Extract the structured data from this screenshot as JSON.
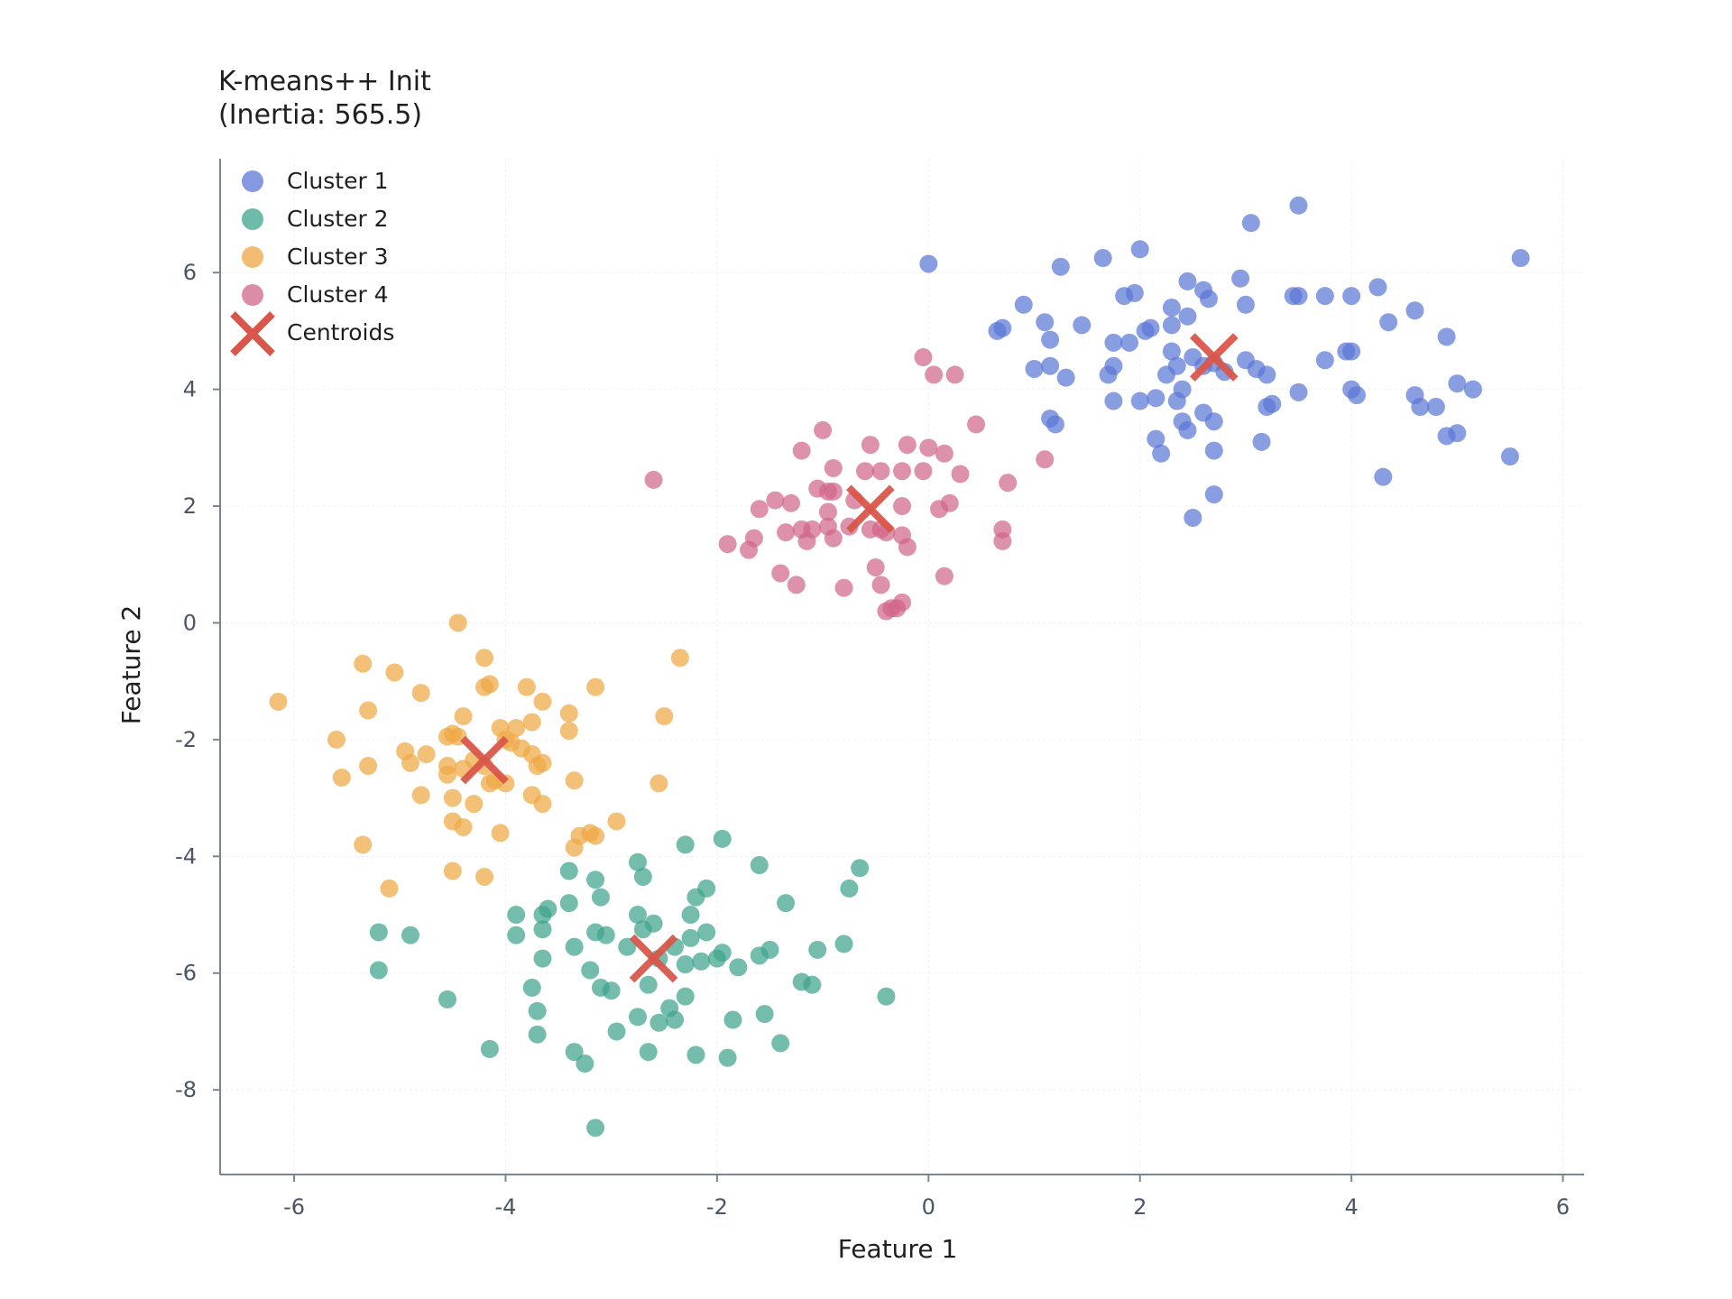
{
  "chart_data": {
    "type": "scatter",
    "title_line1": "K-means++ Init",
    "title_line2": "(Inertia: 565.5)",
    "xlabel": "Feature 1",
    "ylabel": "Feature 2",
    "xlim": [
      -6.7,
      6.2
    ],
    "ylim": [
      -9.45,
      7.95
    ],
    "xticks": [
      -6,
      -4,
      -2,
      0,
      2,
      4,
      6
    ],
    "yticks": [
      -8,
      -6,
      -4,
      -2,
      0,
      2,
      4,
      6
    ],
    "xtick_labels": [
      "-6",
      "-4",
      "-2",
      "0",
      "2",
      "4",
      "6"
    ],
    "ytick_labels": [
      "-8",
      "-6",
      "-4",
      "-2",
      "0",
      "2",
      "4",
      "6"
    ],
    "grid": true,
    "legend_position": "top-left",
    "series": [
      {
        "name": "Cluster 1",
        "color": "#5b77d6",
        "points": [
          [
            0.0,
            6.15
          ],
          [
            1.25,
            6.1
          ],
          [
            1.65,
            6.25
          ],
          [
            2.0,
            6.4
          ],
          [
            3.05,
            6.85
          ],
          [
            3.5,
            7.15
          ],
          [
            5.6,
            6.25
          ],
          [
            0.9,
            5.45
          ],
          [
            1.85,
            5.6
          ],
          [
            1.95,
            5.65
          ],
          [
            2.3,
            5.4
          ],
          [
            2.45,
            5.85
          ],
          [
            2.6,
            5.7
          ],
          [
            2.65,
            5.55
          ],
          [
            2.95,
            5.9
          ],
          [
            3.0,
            5.45
          ],
          [
            3.45,
            5.6
          ],
          [
            3.5,
            5.6
          ],
          [
            3.75,
            5.6
          ],
          [
            4.0,
            5.6
          ],
          [
            4.25,
            5.75
          ],
          [
            4.6,
            5.35
          ],
          [
            0.65,
            5.0
          ],
          [
            0.7,
            5.05
          ],
          [
            1.1,
            5.15
          ],
          [
            1.15,
            4.85
          ],
          [
            1.45,
            5.1
          ],
          [
            2.05,
            5.0
          ],
          [
            2.1,
            5.05
          ],
          [
            2.3,
            5.1
          ],
          [
            2.45,
            5.25
          ],
          [
            1.75,
            4.8
          ],
          [
            1.9,
            4.8
          ],
          [
            2.3,
            4.65
          ],
          [
            2.5,
            4.55
          ],
          [
            2.35,
            4.4
          ],
          [
            2.6,
            4.4
          ],
          [
            2.7,
            4.45
          ],
          [
            2.8,
            4.3
          ],
          [
            3.0,
            4.5
          ],
          [
            3.1,
            4.35
          ],
          [
            3.2,
            4.25
          ],
          [
            1.0,
            4.35
          ],
          [
            1.15,
            4.4
          ],
          [
            1.3,
            4.2
          ],
          [
            1.7,
            4.25
          ],
          [
            1.75,
            4.4
          ],
          [
            2.25,
            4.25
          ],
          [
            2.4,
            4.0
          ],
          [
            3.2,
            3.7
          ],
          [
            3.25,
            3.75
          ],
          [
            3.5,
            3.95
          ],
          [
            3.75,
            4.5
          ],
          [
            3.95,
            4.65
          ],
          [
            4.0,
            4.65
          ],
          [
            4.0,
            4.0
          ],
          [
            4.05,
            3.9
          ],
          [
            4.35,
            5.15
          ],
          [
            4.9,
            4.9
          ],
          [
            5.0,
            4.1
          ],
          [
            5.15,
            4.0
          ],
          [
            4.6,
            3.9
          ],
          [
            4.65,
            3.7
          ],
          [
            4.8,
            3.7
          ],
          [
            4.9,
            3.2
          ],
          [
            5.0,
            3.25
          ],
          [
            5.5,
            2.85
          ],
          [
            1.75,
            3.8
          ],
          [
            2.0,
            3.8
          ],
          [
            2.15,
            3.85
          ],
          [
            2.35,
            3.8
          ],
          [
            2.4,
            3.45
          ],
          [
            2.6,
            3.6
          ],
          [
            2.7,
            3.45
          ],
          [
            1.15,
            3.5
          ],
          [
            1.2,
            3.4
          ],
          [
            2.15,
            3.15
          ],
          [
            2.2,
            2.9
          ],
          [
            2.45,
            3.3
          ],
          [
            2.7,
            2.95
          ],
          [
            3.15,
            3.1
          ],
          [
            4.3,
            2.5
          ],
          [
            2.7,
            2.2
          ],
          [
            2.5,
            1.8
          ]
        ]
      },
      {
        "name": "Cluster 2",
        "color": "#3fa48c",
        "points": [
          [
            -1.95,
            -3.7
          ],
          [
            -2.3,
            -3.8
          ],
          [
            -0.65,
            -4.2
          ],
          [
            -1.6,
            -4.15
          ],
          [
            -2.75,
            -4.1
          ],
          [
            -2.7,
            -4.35
          ],
          [
            -3.4,
            -4.25
          ],
          [
            -3.15,
            -4.4
          ],
          [
            -2.1,
            -4.55
          ],
          [
            -2.2,
            -4.7
          ],
          [
            -0.75,
            -4.55
          ],
          [
            -1.35,
            -4.8
          ],
          [
            -3.1,
            -4.7
          ],
          [
            -3.4,
            -4.8
          ],
          [
            -3.6,
            -4.9
          ],
          [
            -3.65,
            -5.0
          ],
          [
            -3.9,
            -5.0
          ],
          [
            -2.75,
            -5.0
          ],
          [
            -2.6,
            -5.15
          ],
          [
            -2.25,
            -5.0
          ],
          [
            -2.1,
            -5.3
          ],
          [
            -2.7,
            -5.25
          ],
          [
            -3.05,
            -5.35
          ],
          [
            -3.15,
            -5.3
          ],
          [
            -3.65,
            -5.25
          ],
          [
            -3.9,
            -5.35
          ],
          [
            -5.2,
            -5.3
          ],
          [
            -4.9,
            -5.35
          ],
          [
            -2.85,
            -5.55
          ],
          [
            -2.4,
            -5.55
          ],
          [
            -2.25,
            -5.4
          ],
          [
            -1.95,
            -5.65
          ],
          [
            -1.6,
            -5.7
          ],
          [
            -1.5,
            -5.6
          ],
          [
            -1.05,
            -5.6
          ],
          [
            -0.8,
            -5.5
          ],
          [
            -3.35,
            -5.55
          ],
          [
            -3.65,
            -5.75
          ],
          [
            -2.55,
            -5.75
          ],
          [
            -2.3,
            -5.85
          ],
          [
            -2.15,
            -5.8
          ],
          [
            -2.0,
            -5.75
          ],
          [
            -1.8,
            -5.9
          ],
          [
            -3.2,
            -5.95
          ],
          [
            -3.1,
            -6.25
          ],
          [
            -3.0,
            -6.3
          ],
          [
            -2.65,
            -6.2
          ],
          [
            -2.3,
            -6.4
          ],
          [
            -1.2,
            -6.15
          ],
          [
            -1.1,
            -6.2
          ],
          [
            -0.4,
            -6.4
          ],
          [
            -5.2,
            -5.95
          ],
          [
            -4.55,
            -6.45
          ],
          [
            -3.75,
            -6.25
          ],
          [
            -3.7,
            -6.65
          ],
          [
            -2.75,
            -6.75
          ],
          [
            -2.55,
            -6.85
          ],
          [
            -2.45,
            -6.6
          ],
          [
            -2.4,
            -6.8
          ],
          [
            -1.85,
            -6.8
          ],
          [
            -1.55,
            -6.7
          ],
          [
            -2.95,
            -7.0
          ],
          [
            -3.7,
            -7.05
          ],
          [
            -1.4,
            -7.2
          ],
          [
            -4.15,
            -7.3
          ],
          [
            -3.35,
            -7.35
          ],
          [
            -3.25,
            -7.55
          ],
          [
            -2.65,
            -7.35
          ],
          [
            -2.2,
            -7.4
          ],
          [
            -1.9,
            -7.45
          ],
          [
            -3.15,
            -8.65
          ]
        ]
      },
      {
        "name": "Cluster 3",
        "color": "#eea744",
        "points": [
          [
            -4.45,
            0.0
          ],
          [
            -4.2,
            -0.6
          ],
          [
            -5.35,
            -0.7
          ],
          [
            -5.05,
            -0.85
          ],
          [
            -2.35,
            -0.6
          ],
          [
            -4.15,
            -1.05
          ],
          [
            -4.2,
            -1.1
          ],
          [
            -3.8,
            -1.1
          ],
          [
            -3.15,
            -1.1
          ],
          [
            -4.8,
            -1.2
          ],
          [
            -6.15,
            -1.35
          ],
          [
            -3.65,
            -1.35
          ],
          [
            -5.3,
            -1.5
          ],
          [
            -4.4,
            -1.6
          ],
          [
            -3.4,
            -1.55
          ],
          [
            -2.5,
            -1.6
          ],
          [
            -4.05,
            -1.8
          ],
          [
            -3.9,
            -1.8
          ],
          [
            -3.75,
            -1.7
          ],
          [
            -3.4,
            -1.85
          ],
          [
            -5.6,
            -2.0
          ],
          [
            -4.55,
            -1.95
          ],
          [
            -4.5,
            -1.9
          ],
          [
            -4.45,
            -1.95
          ],
          [
            -4.0,
            -2.0
          ],
          [
            -3.95,
            -2.05
          ],
          [
            -3.85,
            -2.15
          ],
          [
            -4.95,
            -2.2
          ],
          [
            -4.75,
            -2.25
          ],
          [
            -4.55,
            -2.45
          ],
          [
            -4.3,
            -2.35
          ],
          [
            -4.2,
            -2.45
          ],
          [
            -3.75,
            -2.25
          ],
          [
            -4.9,
            -2.4
          ],
          [
            -5.3,
            -2.45
          ],
          [
            -3.7,
            -2.45
          ],
          [
            -3.65,
            -2.4
          ],
          [
            -4.4,
            -2.5
          ],
          [
            -4.55,
            -2.6
          ],
          [
            -4.0,
            -2.75
          ],
          [
            -4.15,
            -2.75
          ],
          [
            -4.1,
            -2.7
          ],
          [
            -5.55,
            -2.65
          ],
          [
            -3.35,
            -2.7
          ],
          [
            -2.55,
            -2.75
          ],
          [
            -4.8,
            -2.95
          ],
          [
            -4.5,
            -3.0
          ],
          [
            -3.75,
            -2.95
          ],
          [
            -3.65,
            -3.1
          ],
          [
            -4.3,
            -3.1
          ],
          [
            -4.5,
            -3.4
          ],
          [
            -4.4,
            -3.5
          ],
          [
            -3.3,
            -3.65
          ],
          [
            -3.2,
            -3.6
          ],
          [
            -2.95,
            -3.4
          ],
          [
            -3.15,
            -3.65
          ],
          [
            -4.05,
            -3.6
          ],
          [
            -5.35,
            -3.8
          ],
          [
            -3.35,
            -3.85
          ],
          [
            -4.5,
            -4.25
          ],
          [
            -4.2,
            -4.35
          ],
          [
            -5.1,
            -4.55
          ]
        ]
      },
      {
        "name": "Cluster 4",
        "color": "#d1668a",
        "points": [
          [
            -0.05,
            4.55
          ],
          [
            0.05,
            4.25
          ],
          [
            0.25,
            4.25
          ],
          [
            0.45,
            3.4
          ],
          [
            -1.0,
            3.3
          ],
          [
            -0.55,
            3.05
          ],
          [
            -0.2,
            3.05
          ],
          [
            0.0,
            3.0
          ],
          [
            0.15,
            2.9
          ],
          [
            -1.2,
            2.95
          ],
          [
            -0.9,
            2.65
          ],
          [
            -0.6,
            2.6
          ],
          [
            -0.45,
            2.6
          ],
          [
            -0.25,
            2.6
          ],
          [
            -0.05,
            2.6
          ],
          [
            0.3,
            2.55
          ],
          [
            1.1,
            2.8
          ],
          [
            0.75,
            2.4
          ],
          [
            -2.6,
            2.45
          ],
          [
            -1.45,
            2.1
          ],
          [
            -1.3,
            2.05
          ],
          [
            -1.05,
            2.3
          ],
          [
            -0.95,
            2.25
          ],
          [
            -0.9,
            2.25
          ],
          [
            -0.7,
            2.1
          ],
          [
            -0.25,
            2.0
          ],
          [
            0.2,
            2.05
          ],
          [
            0.1,
            1.95
          ],
          [
            -1.6,
            1.95
          ],
          [
            -0.95,
            1.9
          ],
          [
            -0.75,
            1.65
          ],
          [
            -0.55,
            1.6
          ],
          [
            -0.45,
            1.6
          ],
          [
            -0.4,
            1.55
          ],
          [
            -0.95,
            1.65
          ],
          [
            -1.1,
            1.6
          ],
          [
            -1.2,
            1.6
          ],
          [
            -1.35,
            1.55
          ],
          [
            -1.15,
            1.4
          ],
          [
            -0.9,
            1.45
          ],
          [
            -0.25,
            1.5
          ],
          [
            -0.2,
            1.3
          ],
          [
            0.7,
            1.6
          ],
          [
            0.7,
            1.4
          ],
          [
            -1.9,
            1.35
          ],
          [
            -1.65,
            1.45
          ],
          [
            -1.7,
            1.25
          ],
          [
            -0.5,
            0.95
          ],
          [
            -1.4,
            0.85
          ],
          [
            -1.25,
            0.65
          ],
          [
            -0.8,
            0.6
          ],
          [
            -0.45,
            0.65
          ],
          [
            0.15,
            0.8
          ],
          [
            -0.25,
            0.35
          ],
          [
            -0.35,
            0.25
          ],
          [
            -0.4,
            0.2
          ],
          [
            -0.3,
            0.25
          ]
        ]
      }
    ],
    "centroids": {
      "name": "Centroids",
      "color": "#d9564a",
      "points": [
        [
          2.7,
          4.55
        ],
        [
          -2.6,
          -5.75
        ],
        [
          -4.2,
          -2.35
        ],
        [
          -0.55,
          1.95
        ]
      ]
    }
  }
}
